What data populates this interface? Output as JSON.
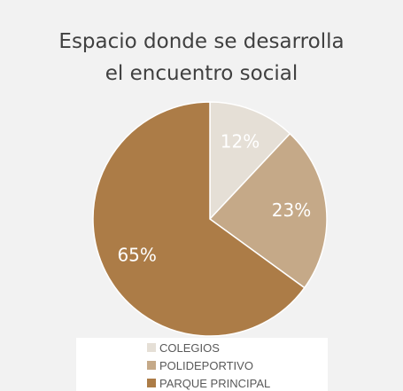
{
  "chart_data": {
    "type": "pie",
    "title_lines": [
      "Espacio donde se desarrolla",
      "el encuentro social"
    ],
    "categories": [
      "COLEGIOS",
      "POLIDEPORTIVO",
      "PARQUE PRINCIPAL"
    ],
    "values": [
      12,
      23,
      65
    ],
    "data_labels": [
      "12%",
      "23%",
      "65%"
    ],
    "colors": [
      "#e5dfd6",
      "#c5a988",
      "#ac7c47"
    ],
    "label_color": "#ffffff",
    "legend_position": "bottom"
  }
}
